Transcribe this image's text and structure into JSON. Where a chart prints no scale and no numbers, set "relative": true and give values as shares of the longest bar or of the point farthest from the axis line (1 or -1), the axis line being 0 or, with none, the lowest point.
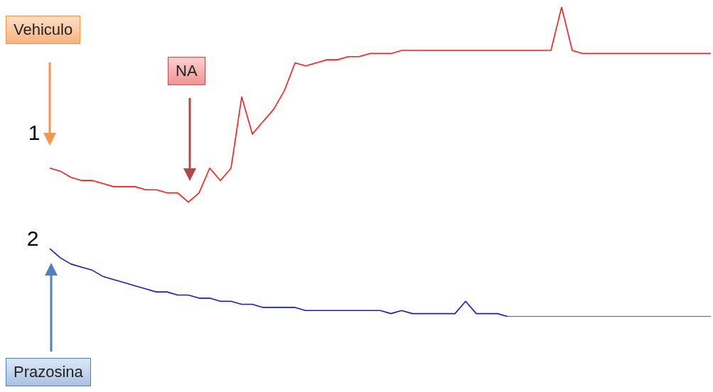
{
  "chart_data": {
    "type": "line",
    "relative": true,
    "legend": false,
    "marker": "none",
    "line_style": "solid",
    "categories": [
      null,
      null,
      null,
      null,
      null,
      null,
      null,
      null,
      null,
      null,
      null,
      null,
      null,
      null,
      null,
      null,
      null,
      null,
      null,
      null,
      null,
      null,
      null,
      null,
      null,
      null,
      null,
      null,
      null,
      null,
      null,
      null,
      null,
      null,
      null,
      null,
      null,
      null,
      null,
      null,
      null,
      null,
      null,
      null,
      null,
      null,
      null,
      null,
      null,
      null,
      null,
      null,
      null,
      null,
      null,
      null,
      null,
      null,
      null,
      null,
      null,
      null,
      null
    ],
    "series": [
      {
        "name": "1",
        "color": "#ff1a1a",
        "values": [
          0.48,
          0.47,
          0.45,
          0.44,
          0.44,
          0.43,
          0.42,
          0.42,
          0.42,
          0.41,
          0.41,
          0.4,
          0.4,
          0.37,
          0.4,
          0.48,
          0.44,
          0.48,
          0.71,
          0.59,
          0.63,
          0.67,
          0.73,
          0.82,
          0.81,
          0.82,
          0.83,
          0.83,
          0.84,
          0.84,
          0.85,
          0.85,
          0.85,
          0.86,
          0.86,
          0.86,
          0.86,
          0.86,
          0.86,
          0.86,
          0.86,
          0.86,
          0.86,
          0.86,
          0.86,
          0.86,
          0.86,
          0.86,
          1.0,
          0.86,
          0.85,
          0.85,
          0.85,
          0.85,
          0.85,
          0.85,
          0.85,
          0.85,
          0.85,
          0.85,
          0.85,
          0.85,
          0.85
        ]
      },
      {
        "name": "2",
        "color": "#1a1acc",
        "values": [
          0.22,
          0.19,
          0.17,
          0.16,
          0.15,
          0.13,
          0.12,
          0.11,
          0.1,
          0.09,
          0.08,
          0.08,
          0.07,
          0.07,
          0.06,
          0.06,
          0.05,
          0.05,
          0.04,
          0.04,
          0.03,
          0.03,
          0.03,
          0.03,
          0.02,
          0.02,
          0.02,
          0.02,
          0.02,
          0.02,
          0.02,
          0.02,
          0.01,
          0.02,
          0.01,
          0.01,
          0.01,
          0.01,
          0.01,
          0.05,
          0.01,
          0.01,
          0.01,
          0.0,
          0.0,
          0.0,
          0.0,
          0.0,
          0.0,
          0.0,
          0.0,
          0.0,
          0.0,
          0.0,
          0.0,
          0.0,
          0.0,
          0.0,
          0.0,
          0.0,
          0.0,
          0.0,
          0.0
        ]
      }
    ],
    "annotations": [
      "Vehiculo",
      "NA",
      "Prazosina"
    ]
  }
}
